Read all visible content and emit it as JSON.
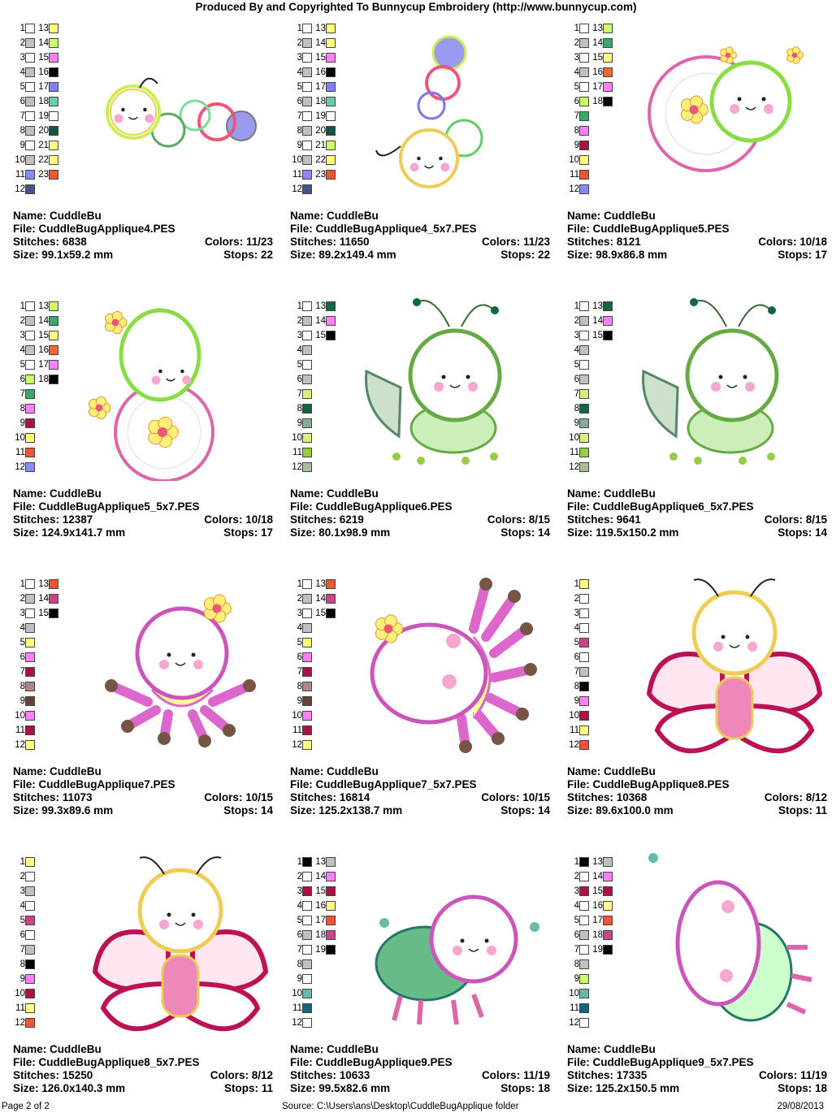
{
  "header": "Produced By and Copyrighted To Bunnycup Embroidery (http://www.bunnycup.com)",
  "footer": {
    "page": "Page 2 of 2",
    "source": "Source: C:\\Users\\ans\\Desktop\\CuddleBugApplique folder",
    "date": "29/08/2013"
  },
  "labels": {
    "name": "Name: ",
    "file": "File: ",
    "stitches": "Stitches: ",
    "colors": "Colors: ",
    "size": "Size: ",
    "stops": "Stops: "
  },
  "designs": [
    {
      "name": "CuddleBu",
      "file": "CuddleBugApplique4.PES",
      "stitches": "6838",
      "colors": "11/23",
      "size": "99.1x59.2 mm",
      "stops": "22",
      "art": "caterpillar-h",
      "swatches": [
        [
          "1",
          "#ffffff",
          "13",
          "#ffff80"
        ],
        [
          "2",
          "#c0c0c0",
          "14",
          "#ccff66"
        ],
        [
          "3",
          "#ffffff",
          "15",
          "#ff80ff"
        ],
        [
          "4",
          "#c0c0c0",
          "16",
          "#000000"
        ],
        [
          "5",
          "#ffffff",
          "17",
          "#8080ff"
        ],
        [
          "6",
          "#c0c0c0",
          "18",
          "#66ccaa"
        ],
        [
          "7",
          "#ffffff",
          "19",
          "#ffffff"
        ],
        [
          "8",
          "#c0c0c0",
          "20",
          "#115544"
        ],
        [
          "9",
          "#ffffff",
          "21",
          "#ffff80"
        ],
        [
          "10",
          "#c0c0c0",
          "22",
          "#ffff80"
        ],
        [
          "11",
          "#8888ff",
          "23",
          "#ee5533"
        ],
        [
          "12",
          "#445588"
        ]
      ]
    },
    {
      "name": "CuddleBu",
      "file": "CuddleBugApplique4_5x7.PES",
      "stitches": "11650",
      "colors": "11/23",
      "size": "89.2x149.4 mm",
      "stops": "22",
      "art": "caterpillar-v",
      "swatches": [
        [
          "1",
          "#ffffff",
          "13",
          "#ffff80"
        ],
        [
          "2",
          "#c0c0c0",
          "14",
          "#ffff80"
        ],
        [
          "3",
          "#ffffff",
          "15",
          "#ff80ff"
        ],
        [
          "4",
          "#c0c0c0",
          "16",
          "#000000"
        ],
        [
          "5",
          "#ffffff",
          "17",
          "#8080ff"
        ],
        [
          "6",
          "#c0c0c0",
          "18",
          "#66ccaa"
        ],
        [
          "7",
          "#ffffff",
          "19",
          "#ffffff"
        ],
        [
          "8",
          "#c0c0c0",
          "20",
          "#115544"
        ],
        [
          "9",
          "#ffffff",
          "21",
          "#ccff66"
        ],
        [
          "10",
          "#c0c0c0",
          "22",
          "#ffff80"
        ],
        [
          "11",
          "#8888ff",
          "23",
          "#ee5533"
        ],
        [
          "12",
          "#445588"
        ]
      ]
    },
    {
      "name": "CuddleBu",
      "file": "CuddleBugApplique5.PES",
      "stitches": "8121",
      "colors": "10/18",
      "size": "98.9x86.8 mm",
      "stops": "17",
      "art": "snail",
      "swatches": [
        [
          "1",
          "#ffffff",
          "13",
          "#ccff66"
        ],
        [
          "2",
          "#c0c0c0",
          "14",
          "#33aa66"
        ],
        [
          "3",
          "#ffffff",
          "15",
          "#ffff80"
        ],
        [
          "4",
          "#c0c0c0",
          "16",
          "#ee6633"
        ],
        [
          "5",
          "#ffffff",
          "17",
          "#ff80ff"
        ],
        [
          "6",
          "#ccff66",
          "18",
          "#000000"
        ],
        [
          "7",
          "#33aa66",
          "",
          ""
        ],
        [
          "8",
          "#ff80ff",
          "",
          ""
        ],
        [
          "9",
          "#aa1144",
          "",
          ""
        ],
        [
          "10",
          "#ffff80",
          "",
          ""
        ],
        [
          "11",
          "#ee5533",
          "",
          ""
        ],
        [
          "12",
          "#8888ff",
          "",
          ""
        ]
      ]
    },
    {
      "name": "CuddleBu",
      "file": "CuddleBugApplique5_5x7.PES",
      "stitches": "12387",
      "colors": "10/18",
      "size": "124.9x141.7 mm",
      "stops": "17",
      "art": "snail-v",
      "swatches": [
        [
          "1",
          "#ffffff",
          "13",
          "#ccff66"
        ],
        [
          "2",
          "#c0c0c0",
          "14",
          "#33aa66"
        ],
        [
          "3",
          "#ffffff",
          "15",
          "#ffff80"
        ],
        [
          "4",
          "#c0c0c0",
          "16",
          "#ee6633"
        ],
        [
          "5",
          "#ffffff",
          "17",
          "#ff80ff"
        ],
        [
          "6",
          "#ccff66",
          "18",
          "#000000"
        ],
        [
          "7",
          "#33aa66",
          "",
          ""
        ],
        [
          "8",
          "#ff80ff",
          "",
          ""
        ],
        [
          "9",
          "#aa1144",
          "",
          ""
        ],
        [
          "10",
          "#ffff80",
          "",
          ""
        ],
        [
          "11",
          "#ee5533",
          "",
          ""
        ],
        [
          "12",
          "#8888ff",
          "",
          ""
        ]
      ]
    },
    {
      "name": "CuddleBu",
      "file": "CuddleBugApplique6.PES",
      "stitches": "6219",
      "colors": "8/15",
      "size": "80.1x98.9 mm",
      "stops": "14",
      "art": "grasshopper",
      "swatches": [
        [
          "1",
          "#ffffff",
          "13",
          "#116644"
        ],
        [
          "2",
          "#c0c0c0",
          "14",
          "#ff80ff"
        ],
        [
          "3",
          "#ffffff",
          "15",
          "#000000"
        ],
        [
          "4",
          "#c0c0c0",
          "",
          ""
        ],
        [
          "5",
          "#ffffff",
          "",
          ""
        ],
        [
          "6",
          "#c0c0c0",
          "",
          ""
        ],
        [
          "7",
          "#ddee77",
          "",
          ""
        ],
        [
          "8",
          "#116644",
          "",
          ""
        ],
        [
          "9",
          "#88aa99",
          "",
          ""
        ],
        [
          "10",
          "#ddee77",
          "",
          ""
        ],
        [
          "11",
          "#99cc44",
          "",
          ""
        ],
        [
          "12",
          "#aabb99",
          "",
          ""
        ]
      ]
    },
    {
      "name": "CuddleBu",
      "file": "CuddleBugApplique6_5x7.PES",
      "stitches": "9641",
      "colors": "8/15",
      "size": "119.5x150.2 mm",
      "stops": "14",
      "art": "grasshopper",
      "swatches": [
        [
          "1",
          "#ffffff",
          "13",
          "#116644"
        ],
        [
          "2",
          "#c0c0c0",
          "14",
          "#ff80ff"
        ],
        [
          "3",
          "#ffffff",
          "15",
          "#000000"
        ],
        [
          "4",
          "#c0c0c0",
          "",
          ""
        ],
        [
          "5",
          "#ffffff",
          "",
          ""
        ],
        [
          "6",
          "#c0c0c0",
          "",
          ""
        ],
        [
          "7",
          "#ddee77",
          "",
          ""
        ],
        [
          "8",
          "#116644",
          "",
          ""
        ],
        [
          "9",
          "#88aa99",
          "",
          ""
        ],
        [
          "10",
          "#ddee77",
          "",
          ""
        ],
        [
          "11",
          "#99cc44",
          "",
          ""
        ],
        [
          "12",
          "#aabb99",
          "",
          ""
        ]
      ]
    },
    {
      "name": "CuddleBu",
      "file": "CuddleBugApplique7.PES",
      "stitches": "11073",
      "colors": "10/15",
      "size": "99.3x89.6 mm",
      "stops": "14",
      "art": "spider",
      "swatches": [
        [
          "1",
          "#ffffff",
          "13",
          "#ee5533"
        ],
        [
          "2",
          "#c0c0c0",
          "14",
          "#cc4488"
        ],
        [
          "3",
          "#ffffff",
          "15",
          "#000000"
        ],
        [
          "4",
          "#c0c0c0",
          "",
          ""
        ],
        [
          "5",
          "#ffff80",
          "",
          ""
        ],
        [
          "6",
          "#ff80ff",
          "",
          ""
        ],
        [
          "7",
          "#aa1144",
          "",
          ""
        ],
        [
          "8",
          "#aa8888",
          "",
          ""
        ],
        [
          "9",
          "#664433",
          "",
          ""
        ],
        [
          "10",
          "#ff80ff",
          "",
          ""
        ],
        [
          "11",
          "#aa1144",
          "",
          ""
        ],
        [
          "12",
          "#ffff80",
          "",
          ""
        ]
      ]
    },
    {
      "name": "CuddleBu",
      "file": "CuddleBugApplique7_5x7.PES",
      "stitches": "16814",
      "colors": "10/15",
      "size": "125.2x138.7 mm",
      "stops": "14",
      "art": "spider-v",
      "swatches": [
        [
          "1",
          "#ffffff",
          "13",
          "#ee5533"
        ],
        [
          "2",
          "#c0c0c0",
          "14",
          "#cc4488"
        ],
        [
          "3",
          "#ffffff",
          "15",
          "#000000"
        ],
        [
          "4",
          "#c0c0c0",
          "",
          ""
        ],
        [
          "5",
          "#ffff80",
          "",
          ""
        ],
        [
          "6",
          "#ff80ff",
          "",
          ""
        ],
        [
          "7",
          "#aa1144",
          "",
          ""
        ],
        [
          "8",
          "#aa8888",
          "",
          ""
        ],
        [
          "9",
          "#664433",
          "",
          ""
        ],
        [
          "10",
          "#ff80ff",
          "",
          ""
        ],
        [
          "11",
          "#aa1144",
          "",
          ""
        ],
        [
          "12",
          "#ffff80",
          "",
          ""
        ]
      ]
    },
    {
      "name": "CuddleBu",
      "file": "CuddleBugApplique8.PES",
      "stitches": "10368",
      "colors": "8/12",
      "size": "89.6x100.0 mm",
      "stops": "11",
      "art": "butterfly",
      "swatches": [
        [
          "1",
          "#ffff80",
          "",
          ""
        ],
        [
          "2",
          "#ffffff",
          "",
          ""
        ],
        [
          "3",
          "#ffffff",
          "",
          ""
        ],
        [
          "4",
          "#ffffff",
          "",
          ""
        ],
        [
          "5",
          "#cc4488",
          "",
          ""
        ],
        [
          "6",
          "#ffffff",
          "",
          ""
        ],
        [
          "7",
          "#c0c0c0",
          "",
          ""
        ],
        [
          "8",
          "#000000",
          "",
          ""
        ],
        [
          "9",
          "#ff80ff",
          "",
          ""
        ],
        [
          "10",
          "#aa1144",
          "",
          ""
        ],
        [
          "11",
          "#ffff80",
          "",
          ""
        ],
        [
          "12",
          "#ee5533",
          "",
          ""
        ]
      ]
    },
    {
      "name": "CuddleBu",
      "file": "CuddleBugApplique8_5x7.PES",
      "stitches": "15250",
      "colors": "8/12",
      "size": "126.0x140.3 mm",
      "stops": "11",
      "art": "butterfly",
      "swatches": [
        [
          "1",
          "#ffff80",
          "",
          ""
        ],
        [
          "2",
          "#ffffff",
          "",
          ""
        ],
        [
          "3",
          "#c0c0c0",
          "",
          ""
        ],
        [
          "4",
          "#ffffff",
          "",
          ""
        ],
        [
          "5",
          "#cc4488",
          "",
          ""
        ],
        [
          "6",
          "#ffffff",
          "",
          ""
        ],
        [
          "7",
          "#c0c0c0",
          "",
          ""
        ],
        [
          "8",
          "#000000",
          "",
          ""
        ],
        [
          "9",
          "#ff80ff",
          "",
          ""
        ],
        [
          "10",
          "#aa1144",
          "",
          ""
        ],
        [
          "11",
          "#ffff80",
          "",
          ""
        ],
        [
          "12",
          "#ee5533",
          "",
          ""
        ]
      ]
    },
    {
      "name": "CuddleBu",
      "file": "CuddleBugApplique9.PES",
      "stitches": "10633",
      "colors": "11/19",
      "size": "99.5x82.6 mm",
      "stops": "18",
      "art": "ladybug",
      "swatches": [
        [
          "1",
          "#000000",
          "13",
          "#c0c0c0"
        ],
        [
          "2",
          "#ffffff",
          "14",
          "#ff80ff"
        ],
        [
          "3",
          "#aa1144",
          "15",
          "#aa1144"
        ],
        [
          "4",
          "#ffffff",
          "16",
          "#ffff80"
        ],
        [
          "5",
          "#ffffff",
          "17",
          "#ee5533"
        ],
        [
          "6",
          "#c0c0c0",
          "18",
          "#cc4488"
        ],
        [
          "7",
          "#ffffff",
          "19",
          "#000000"
        ],
        [
          "8",
          "#c0c0c0",
          "",
          ""
        ],
        [
          "9",
          "#ffffff",
          "",
          ""
        ],
        [
          "10",
          "#66bbaa",
          "",
          ""
        ],
        [
          "11",
          "#116677",
          "",
          ""
        ],
        [
          "12",
          "#ffffff",
          "",
          ""
        ]
      ]
    },
    {
      "name": "CuddleBu",
      "file": "CuddleBugApplique9_5x7.PES",
      "stitches": "17335",
      "colors": "11/19",
      "size": "125.2x150.5 mm",
      "stops": "18",
      "art": "ladybug-v",
      "swatches": [
        [
          "1",
          "#000000",
          "13",
          "#c0c0c0"
        ],
        [
          "2",
          "#ffffff",
          "14",
          "#ff80ff"
        ],
        [
          "3",
          "#aa1144",
          "15",
          "#aa1144"
        ],
        [
          "4",
          "#ffffff",
          "16",
          "#ffff80"
        ],
        [
          "5",
          "#ffffff",
          "17",
          "#ee5533"
        ],
        [
          "6",
          "#c0c0c0",
          "18",
          "#cc4488"
        ],
        [
          "7",
          "#ffffff",
          "19",
          "#000000"
        ],
        [
          "8",
          "#c0c0c0",
          "",
          ""
        ],
        [
          "9",
          "#ccff66",
          "",
          ""
        ],
        [
          "10",
          "#66bbaa",
          "",
          ""
        ],
        [
          "11",
          "#116677",
          "",
          ""
        ],
        [
          "12",
          "#ffffff",
          "",
          ""
        ]
      ]
    }
  ]
}
